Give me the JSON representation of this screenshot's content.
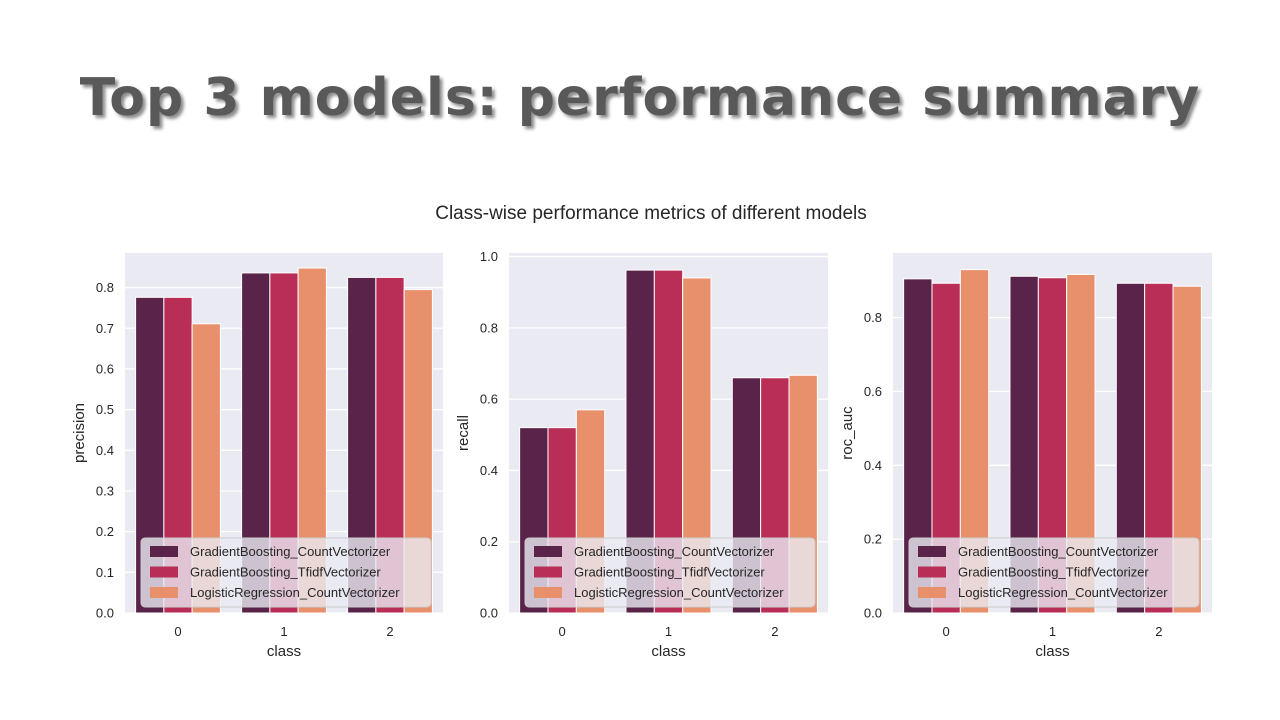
{
  "slide": {
    "title": "Top 3 models: performance summary"
  },
  "chart_title": "Class-wise performance metrics of different models",
  "colors": {
    "GradientBoosting_CountVectorizer": "#5a2349",
    "GradientBoosting_TfidfVectorizer": "#b82e56",
    "LogisticRegression_CountVectorizer": "#e8906b",
    "axes_background": "#eaeaf2",
    "grid": "#ffffff"
  },
  "chart_data": [
    {
      "type": "bar",
      "xlabel": "class",
      "ylabel": "precision",
      "categories": [
        "0",
        "1",
        "2"
      ],
      "ylim": [
        0,
        0.885
      ],
      "yticks": [
        "0.0",
        "0.1",
        "0.2",
        "0.3",
        "0.4",
        "0.5",
        "0.6",
        "0.7",
        "0.8"
      ],
      "grid": true,
      "legend_position": "lower-left",
      "series": [
        {
          "name": "GradientBoosting_CountVectorizer",
          "values": [
            0.776,
            0.836,
            0.825
          ]
        },
        {
          "name": "GradientBoosting_TfidfVectorizer",
          "values": [
            0.776,
            0.836,
            0.825
          ]
        },
        {
          "name": "LogisticRegression_CountVectorizer",
          "values": [
            0.711,
            0.848,
            0.795
          ]
        }
      ]
    },
    {
      "type": "bar",
      "xlabel": "class",
      "ylabel": "recall",
      "categories": [
        "0",
        "1",
        "2"
      ],
      "ylim": [
        0,
        1.01
      ],
      "yticks": [
        "0.0",
        "0.2",
        "0.4",
        "0.6",
        "0.8",
        "1.0"
      ],
      "grid": true,
      "legend_position": "lower-left",
      "series": [
        {
          "name": "GradientBoosting_CountVectorizer",
          "values": [
            0.52,
            0.962,
            0.66
          ]
        },
        {
          "name": "GradientBoosting_TfidfVectorizer",
          "values": [
            0.52,
            0.962,
            0.66
          ]
        },
        {
          "name": "LogisticRegression_CountVectorizer",
          "values": [
            0.57,
            0.94,
            0.667
          ]
        }
      ]
    },
    {
      "type": "bar",
      "xlabel": "class",
      "ylabel": "roc_auc",
      "categories": [
        "0",
        "1",
        "2"
      ],
      "ylim": [
        0,
        0.975
      ],
      "yticks": [
        "0.0",
        "0.2",
        "0.4",
        "0.6",
        "0.8"
      ],
      "grid": true,
      "legend_position": "lower-left",
      "series": [
        {
          "name": "GradientBoosting_CountVectorizer",
          "values": [
            0.905,
            0.912,
            0.893
          ]
        },
        {
          "name": "GradientBoosting_TfidfVectorizer",
          "values": [
            0.893,
            0.908,
            0.893
          ]
        },
        {
          "name": "LogisticRegression_CountVectorizer",
          "values": [
            0.93,
            0.917,
            0.885
          ]
        }
      ]
    }
  ]
}
